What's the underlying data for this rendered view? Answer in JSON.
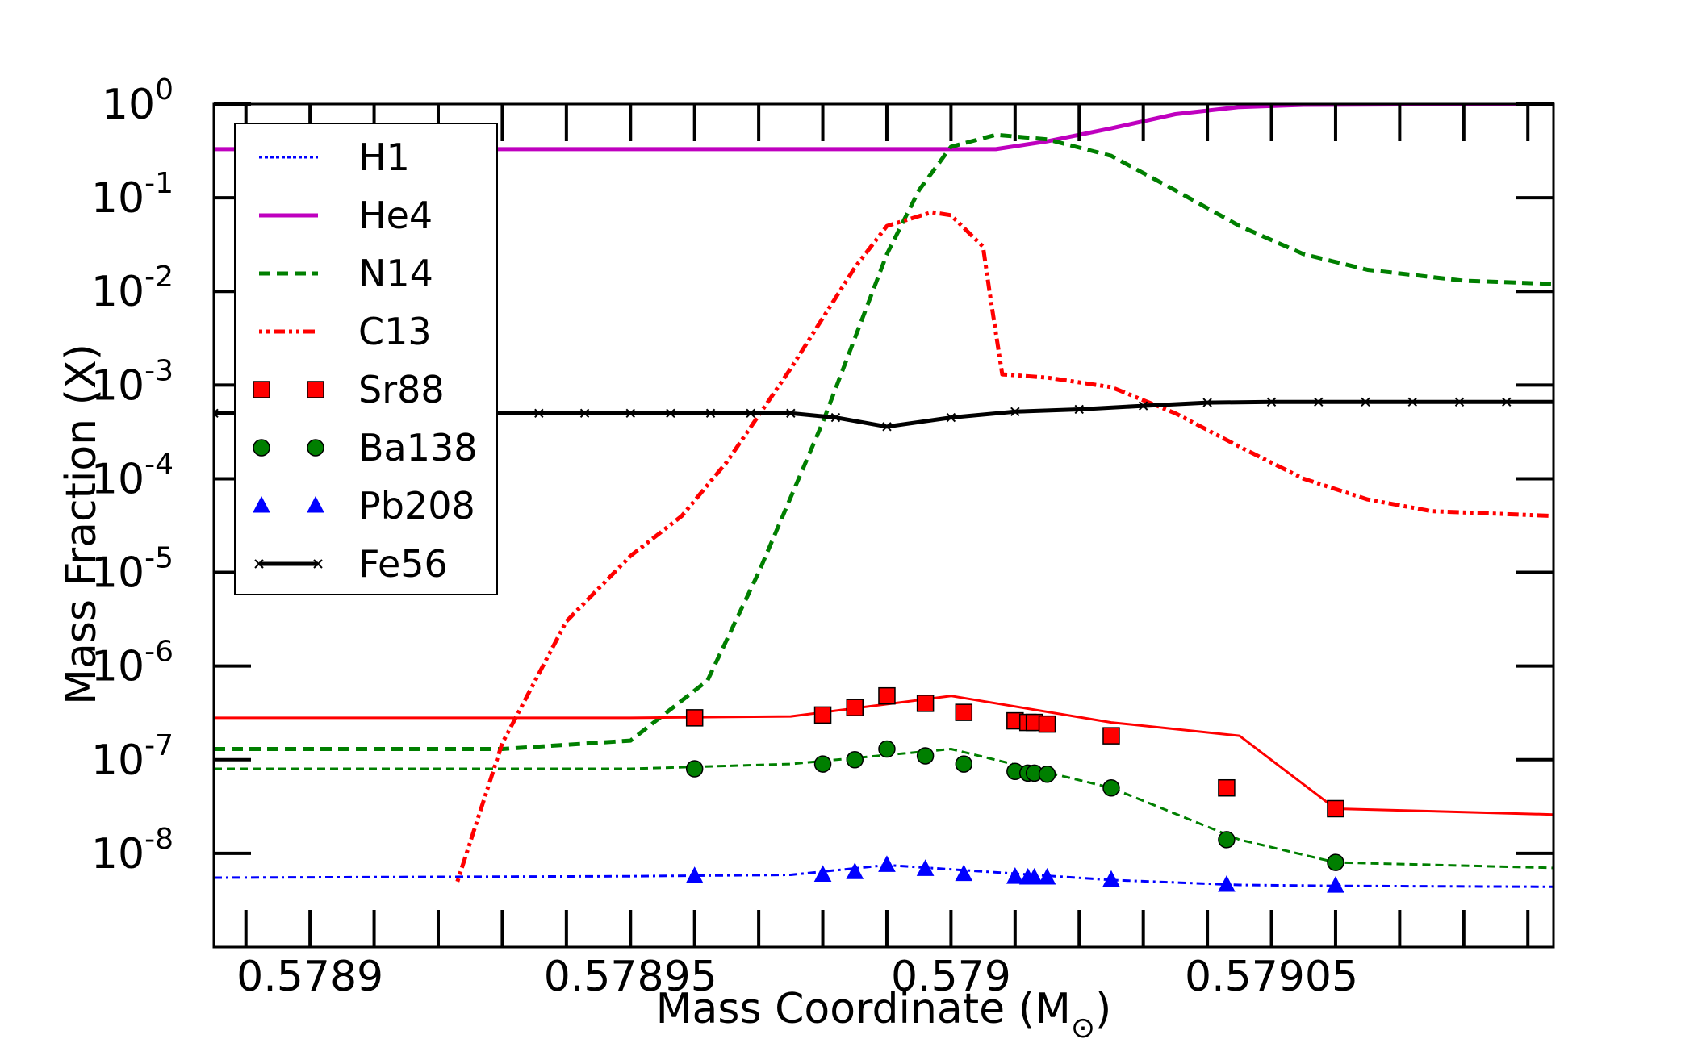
{
  "chart_data": {
    "type": "line",
    "xlabel": "Mass Coordinate (M",
    "xlabel_symbol": "⊙",
    "xlabel_close": ")",
    "ylabel": "Mass Fraction (X)",
    "xlim": [
      0.578885,
      0.579094
    ],
    "ylim_log10": [
      -9,
      0
    ],
    "y_scale": "log",
    "legend_position": "upper-left",
    "x_ticks": [
      {
        "value": 0.5789,
        "label": "0.5789"
      },
      {
        "value": 0.57895,
        "label": "0.57895"
      },
      {
        "value": 0.579,
        "label": "0.579"
      },
      {
        "value": 0.57905,
        "label": "0.57905"
      }
    ],
    "y_ticks": [
      {
        "exp": 0,
        "base": "10",
        "sup": "0"
      },
      {
        "exp": -1,
        "base": "10",
        "sup": "-1"
      },
      {
        "exp": -2,
        "base": "10",
        "sup": "-2"
      },
      {
        "exp": -3,
        "base": "10",
        "sup": "-3"
      },
      {
        "exp": -4,
        "base": "10",
        "sup": "-4"
      },
      {
        "exp": -5,
        "base": "10",
        "sup": "-5"
      },
      {
        "exp": -6,
        "base": "10",
        "sup": "-6"
      },
      {
        "exp": -7,
        "base": "10",
        "sup": "-7"
      },
      {
        "exp": -8,
        "base": "10",
        "sup": "-8"
      }
    ],
    "series": [
      {
        "name": "H1",
        "color": "#0000ff",
        "dash": "4,3",
        "width": 3,
        "marker": "none",
        "x": [
          0.578885,
          0.57902
        ],
        "y": [
          1e-09,
          1e-09
        ]
      },
      {
        "name": "He4",
        "color": "#bf00bf",
        "dash": "",
        "width": 5,
        "marker": "none",
        "x": [
          0.578885,
          0.5789,
          0.57895,
          0.578985,
          0.579,
          0.579007,
          0.579015,
          0.579025,
          0.579035,
          0.579045,
          0.579055,
          0.57907,
          0.579094
        ],
        "y": [
          0.33,
          0.33,
          0.33,
          0.33,
          0.33,
          0.33,
          0.4,
          0.55,
          0.78,
          0.93,
          0.98,
          0.99,
          0.99
        ]
      },
      {
        "name": "N14",
        "color": "#007f00",
        "dash": "14,8",
        "width": 5,
        "marker": "none",
        "x": [
          0.578885,
          0.57891,
          0.57893,
          0.57895,
          0.578962,
          0.57897,
          0.57898,
          0.57899,
          0.578995,
          0.579,
          0.579007,
          0.579015,
          0.579025,
          0.579035,
          0.579045,
          0.579055,
          0.579065,
          0.57908,
          0.579094
        ],
        "y": [
          1.3e-07,
          1.3e-07,
          1.3e-07,
          1.6e-07,
          7e-07,
          1e-05,
          0.0004,
          0.025,
          0.12,
          0.35,
          0.47,
          0.42,
          0.28,
          0.12,
          0.05,
          0.025,
          0.017,
          0.013,
          0.012
        ]
      },
      {
        "name": "C13",
        "color": "#ff0000",
        "dash": "4,5,4,5,14,5",
        "width": 5,
        "marker": "none",
        "x": [
          0.578923,
          0.57893,
          0.57894,
          0.57895,
          0.578958,
          0.578965,
          0.578975,
          0.578985,
          0.57899,
          0.578997,
          0.579,
          0.579005,
          0.579006,
          0.579008,
          0.579015,
          0.579025,
          0.579035,
          0.579045,
          0.579055,
          0.579065,
          0.579075,
          0.579094
        ],
        "y": [
          5e-09,
          1.5e-07,
          3e-06,
          1.5e-05,
          4e-05,
          0.00015,
          0.0015,
          0.018,
          0.05,
          0.07,
          0.065,
          0.03,
          0.01,
          0.0013,
          0.0012,
          0.00095,
          0.0005,
          0.00022,
          0.0001,
          6e-05,
          4.5e-05,
          4e-05
        ]
      },
      {
        "name": "Sr88",
        "color": "#ff0000",
        "dash": "",
        "width": 3,
        "marker": "square",
        "x": [
          0.578885,
          0.57895,
          0.578975,
          0.579,
          0.579025,
          0.579045,
          0.57906,
          0.579094
        ],
        "y": [
          2.8e-07,
          2.8e-07,
          2.9e-07,
          4.8e-07,
          2.5e-07,
          1.8e-07,
          3e-08,
          2.6e-08
        ],
        "markers_x": [
          0.57896,
          0.57898,
          0.578985,
          0.57899,
          0.578996,
          0.579002,
          0.57901,
          0.579012,
          0.579013,
          0.579015,
          0.579025,
          0.579043,
          0.57906
        ],
        "markers_y": [
          2.8e-07,
          3e-07,
          3.6e-07,
          4.8e-07,
          4e-07,
          3.2e-07,
          2.6e-07,
          2.5e-07,
          2.5e-07,
          2.4e-07,
          1.8e-07,
          5e-08,
          3e-08
        ]
      },
      {
        "name": "Ba138",
        "color": "#007f00",
        "dash": "10,6",
        "width": 3,
        "marker": "circle",
        "x": [
          0.578885,
          0.57895,
          0.578975,
          0.579,
          0.579025,
          0.579045,
          0.57906,
          0.579094
        ],
        "y": [
          8e-08,
          8e-08,
          9e-08,
          1.3e-07,
          5e-08,
          1.4e-08,
          8e-09,
          7e-09
        ],
        "markers_x": [
          0.57896,
          0.57898,
          0.578985,
          0.57899,
          0.578996,
          0.579002,
          0.57901,
          0.579012,
          0.579013,
          0.579015,
          0.579025,
          0.579043,
          0.57906
        ],
        "markers_y": [
          8e-08,
          9e-08,
          1e-07,
          1.3e-07,
          1.1e-07,
          9e-08,
          7.5e-08,
          7.2e-08,
          7.2e-08,
          7e-08,
          5e-08,
          1.4e-08,
          8e-09
        ]
      },
      {
        "name": "Pb208",
        "color": "#0000ff",
        "dash": "10,5,3,5",
        "width": 3,
        "marker": "triangle",
        "x": [
          0.578885,
          0.57895,
          0.578975,
          0.57899,
          0.579025,
          0.579045,
          0.57906,
          0.579094
        ],
        "y": [
          5.5e-09,
          5.7e-09,
          5.9e-09,
          7.5e-09,
          5.2e-09,
          4.6e-09,
          4.5e-09,
          4.4e-09
        ],
        "markers_x": [
          0.57896,
          0.57898,
          0.578985,
          0.57899,
          0.578996,
          0.579002,
          0.57901,
          0.579012,
          0.579013,
          0.579015,
          0.579025,
          0.579043,
          0.57906
        ],
        "markers_y": [
          5.7e-09,
          5.9e-09,
          6.3e-09,
          7.5e-09,
          6.8e-09,
          6e-09,
          5.6e-09,
          5.5e-09,
          5.5e-09,
          5.5e-09,
          5.2e-09,
          4.6e-09,
          4.5e-09
        ]
      },
      {
        "name": "Fe56",
        "color": "#000000",
        "dash": "",
        "width": 5,
        "marker": "x",
        "x": [
          0.578885,
          0.5789,
          0.57895,
          0.578975,
          0.578982,
          0.57899,
          0.579,
          0.57901,
          0.57902,
          0.57903,
          0.57904,
          0.57905,
          0.579094
        ],
        "y": [
          0.0005,
          0.0005,
          0.0005,
          0.0005,
          0.00045,
          0.00036,
          0.00045,
          0.00052,
          0.00055,
          0.0006,
          0.00065,
          0.00066,
          0.00066
        ]
      }
    ]
  }
}
